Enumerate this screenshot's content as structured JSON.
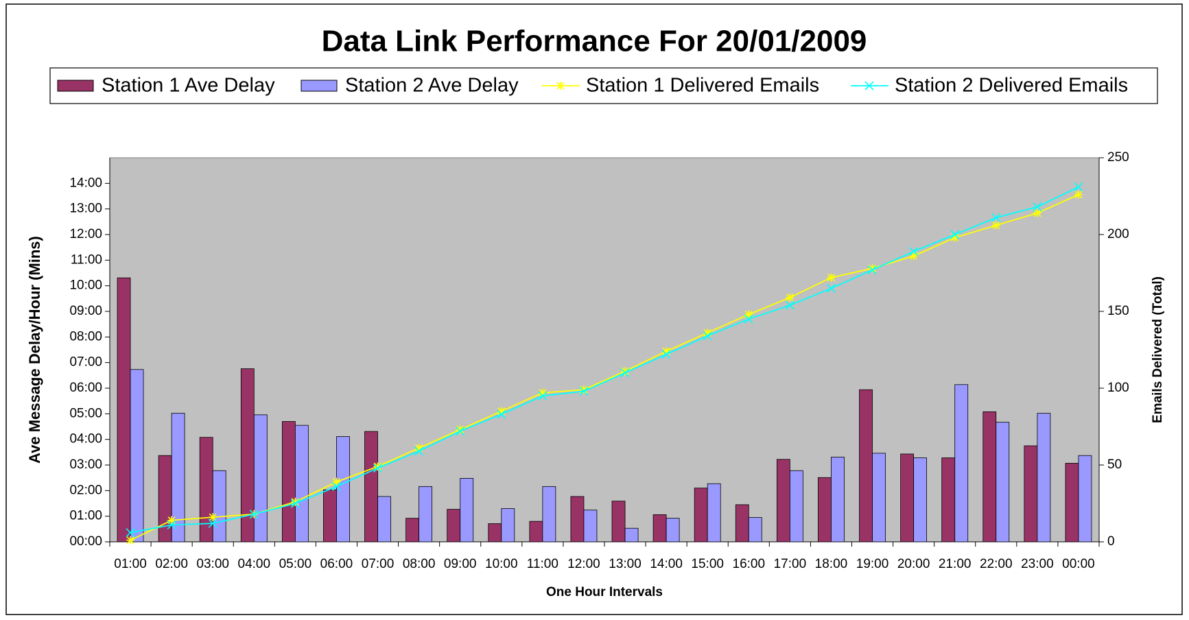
{
  "chart_data": {
    "type": "bar-line",
    "title": "Data Link Performance For 20/01/2009",
    "xlabel": "One Hour Intervals",
    "ylabel": "Ave Message Delay/Hour (Mins)",
    "y2label": "Emails Delivered (Total)",
    "legend": "top",
    "plot_background": "#c0c0c0",
    "categories": [
      "01:00",
      "02:00",
      "03:00",
      "04:00",
      "05:00",
      "06:00",
      "07:00",
      "08:00",
      "09:00",
      "10:00",
      "11:00",
      "12:00",
      "13:00",
      "14:00",
      "15:00",
      "16:00",
      "17:00",
      "18:00",
      "19:00",
      "20:00",
      "21:00",
      "22:00",
      "23:00",
      "00:00"
    ],
    "ylim": [
      0,
      15
    ],
    "yticks": [
      {
        "value": 0,
        "label": "00:00"
      },
      {
        "value": 1,
        "label": "01:00"
      },
      {
        "value": 2,
        "label": "02:00"
      },
      {
        "value": 3,
        "label": "03:00"
      },
      {
        "value": 4,
        "label": "04:00"
      },
      {
        "value": 5,
        "label": "05:00"
      },
      {
        "value": 6,
        "label": "06:00"
      },
      {
        "value": 7,
        "label": "07:00"
      },
      {
        "value": 8,
        "label": "08:00"
      },
      {
        "value": 9,
        "label": "09:00"
      },
      {
        "value": 10,
        "label": "10:00"
      },
      {
        "value": 11,
        "label": "11:00"
      },
      {
        "value": 12,
        "label": "12:00"
      },
      {
        "value": 13,
        "label": "13:00"
      },
      {
        "value": 14,
        "label": "14:00"
      }
    ],
    "y2lim": [
      0,
      250
    ],
    "y2ticks": [
      0,
      50,
      100,
      150,
      200,
      250
    ],
    "series": [
      {
        "name": "Station 1 Ave Delay",
        "type": "bar",
        "color": "#993366",
        "values": [
          10.31,
          3.37,
          4.08,
          6.76,
          4.7,
          2.03,
          4.31,
          0.92,
          1.27,
          0.71,
          0.8,
          1.77,
          1.59,
          1.06,
          2.1,
          1.45,
          3.22,
          2.51,
          5.94,
          3.43,
          3.28,
          5.08,
          3.75,
          3.07
        ]
      },
      {
        "name": "Station 2 Ave Delay",
        "type": "bar",
        "color": "#9999ff",
        "values": [
          6.73,
          5.02,
          2.78,
          4.96,
          4.55,
          4.11,
          1.77,
          2.16,
          2.48,
          1.3,
          2.16,
          1.24,
          0.53,
          0.92,
          2.27,
          0.95,
          2.78,
          3.31,
          3.46,
          3.28,
          6.14,
          4.67,
          5.02,
          3.37
        ]
      },
      {
        "name": "Station 1 Delivered Emails",
        "type": "line",
        "marker": "star",
        "axis": "y2",
        "color": "#ffff00",
        "values": [
          1,
          14,
          16,
          18,
          26,
          39,
          49,
          61,
          73,
          85,
          97,
          99,
          111,
          124,
          136,
          148,
          159,
          172,
          178,
          186,
          198,
          206,
          214,
          226
        ]
      },
      {
        "name": "Station 2 Delivered Emails",
        "type": "line",
        "marker": "x",
        "axis": "y2",
        "color": "#00ffff",
        "values": [
          6,
          11,
          12,
          18,
          25,
          36,
          48,
          59,
          72,
          83,
          95,
          98,
          110,
          122,
          134,
          145,
          154,
          165,
          177,
          189,
          200,
          211,
          218,
          231
        ]
      }
    ]
  }
}
